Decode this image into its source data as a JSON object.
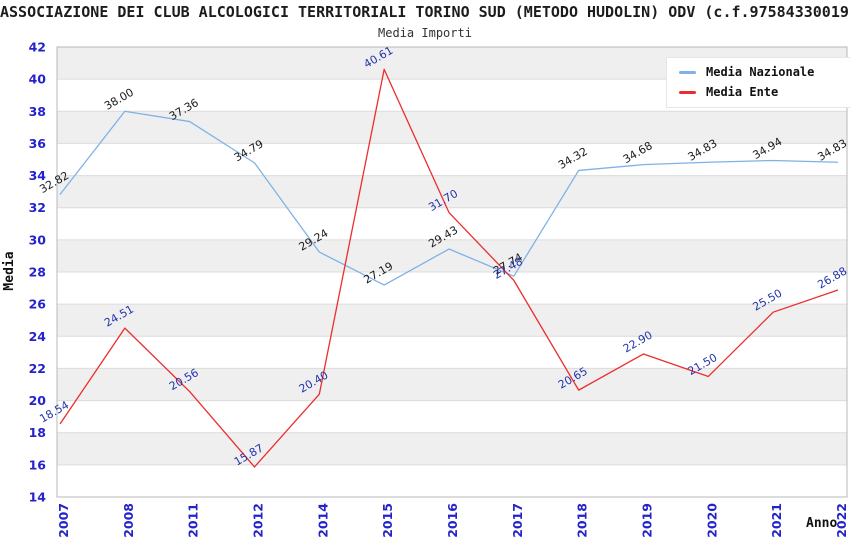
{
  "header": {
    "title": "ASSOCIAZIONE DEI CLUB ALCOLOGICI TERRITORIALI TORINO SUD (METODO HUDOLIN) ODV (c.f.97584330019)",
    "subtitle": "Media Importi"
  },
  "chart_data": {
    "type": "line",
    "title": "ASSOCIAZIONE DEI CLUB ALCOLOGICI TERRITORIALI TORINO SUD (METODO HUDOLIN) ODV (c.f.97584330019)",
    "subtitle": "Media Importi",
    "xlabel": "Anno",
    "ylabel": "Media",
    "categories": [
      "2007",
      "2008",
      "2011",
      "2012",
      "2014",
      "2015",
      "2016",
      "2017",
      "2018",
      "2019",
      "2020",
      "2021",
      "2022"
    ],
    "series": [
      {
        "name": "Media Nazionale",
        "color": "#7EB2E6",
        "label_color": "#1A1A1A",
        "values": [
          32.82,
          38.0,
          37.36,
          34.79,
          29.24,
          27.19,
          29.43,
          27.74,
          34.32,
          34.68,
          34.83,
          34.94,
          34.83
        ]
      },
      {
        "name": "Media Ente",
        "color": "#EC2D2D",
        "label_color": "#2233AA",
        "values": [
          18.54,
          24.51,
          20.56,
          15.87,
          20.4,
          40.61,
          31.7,
          27.48,
          20.65,
          22.9,
          21.5,
          25.5,
          26.88
        ]
      }
    ],
    "ylim": [
      14,
      42
    ],
    "ytick_step": 2,
    "yticks": [
      14,
      16,
      18,
      20,
      22,
      24,
      26,
      28,
      30,
      32,
      34,
      36,
      38,
      40,
      42
    ],
    "grid": true,
    "legend_position": "top-right",
    "band_colors": [
      "#FFFFFF",
      "#EFEFEF"
    ],
    "gridline_color": "#DCDCDC",
    "axis_tick_color": "#2323CC",
    "plot_border_color": "#B9B9B9"
  }
}
